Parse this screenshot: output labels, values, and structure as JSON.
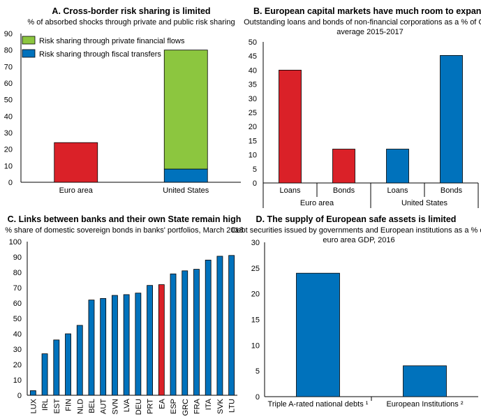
{
  "chart_data": [
    {
      "type": "bar",
      "stacked": true,
      "title": "A. Cross-border risk sharing is limited",
      "subtitle": "% of absorbed shocks through private and public risk sharing",
      "categories": [
        "Euro area",
        "United States"
      ],
      "series": [
        {
          "name": "Risk sharing through fiscal transfers",
          "values": [
            0,
            8
          ],
          "color": "#0072BC"
        },
        {
          "name": "Risk sharing through private financial flows",
          "values": [
            24,
            72
          ],
          "color": "#8CC63F"
        }
      ],
      "bar_colors_override": {
        "Euro area": "#DA2128"
      },
      "ylim": [
        0,
        90
      ],
      "yticks": [
        0,
        10,
        20,
        30,
        40,
        50,
        60,
        70,
        80,
        90
      ],
      "legend": {
        "position": "top-right",
        "entries": [
          {
            "label": "Risk sharing through private financial flows",
            "color": "#8CC63F"
          },
          {
            "label": "Risk sharing through fiscal transfers",
            "color": "#0072BC"
          }
        ]
      }
    },
    {
      "type": "bar",
      "title": "B. European capital markets have much room to expand",
      "subtitle": [
        "Outstanding loans and bonds of non-financial corporations as a % of GDP,",
        "average 2015-2017"
      ],
      "categories": [
        "Loans",
        "Bonds",
        "Loans",
        "Bonds"
      ],
      "groups": [
        "Euro area",
        "United States"
      ],
      "values": [
        40,
        12,
        12,
        45.2
      ],
      "colors": [
        "#DA2128",
        "#DA2128",
        "#0072BC",
        "#0072BC"
      ],
      "ylim": [
        0,
        50
      ],
      "yticks": [
        0,
        5,
        10,
        15,
        20,
        25,
        30,
        35,
        40,
        45,
        50
      ]
    },
    {
      "type": "bar",
      "title": "C. Links between banks and their own State remain high",
      "subtitle": "% share of domestic sovereign bonds in banks' portfolios, March 2018",
      "categories": [
        "LUX",
        "IRL",
        "EST",
        "FIN",
        "NLD",
        "BEL",
        "AUT",
        "SVN",
        "LVA",
        "DEU",
        "PRT",
        "EA",
        "ESP",
        "GRC",
        "FRA",
        "ITA",
        "SVK",
        "LTU"
      ],
      "values": [
        3,
        27,
        36,
        40,
        45.5,
        62,
        63,
        65,
        65.5,
        66.5,
        71.5,
        72,
        79,
        81,
        82,
        88,
        90.5,
        91
      ],
      "colors": {
        "default": "#0072BC",
        "EA": "#DA2128"
      },
      "ylim": [
        0,
        100
      ],
      "yticks": [
        0,
        10,
        20,
        30,
        40,
        50,
        60,
        70,
        80,
        90,
        100
      ]
    },
    {
      "type": "bar",
      "title": "D. The supply of European safe assets is limited",
      "subtitle": [
        "Debt securities issued by governments and European institutions as a % of",
        "euro area GDP, 2016"
      ],
      "categories": [
        "Triple A-rated national debts ¹",
        "European Institutions ²"
      ],
      "values": [
        24,
        6
      ],
      "colors": [
        "#0072BC",
        "#0072BC"
      ],
      "ylim": [
        0,
        30
      ],
      "yticks": [
        0,
        5,
        10,
        15,
        20,
        25,
        30
      ]
    }
  ]
}
